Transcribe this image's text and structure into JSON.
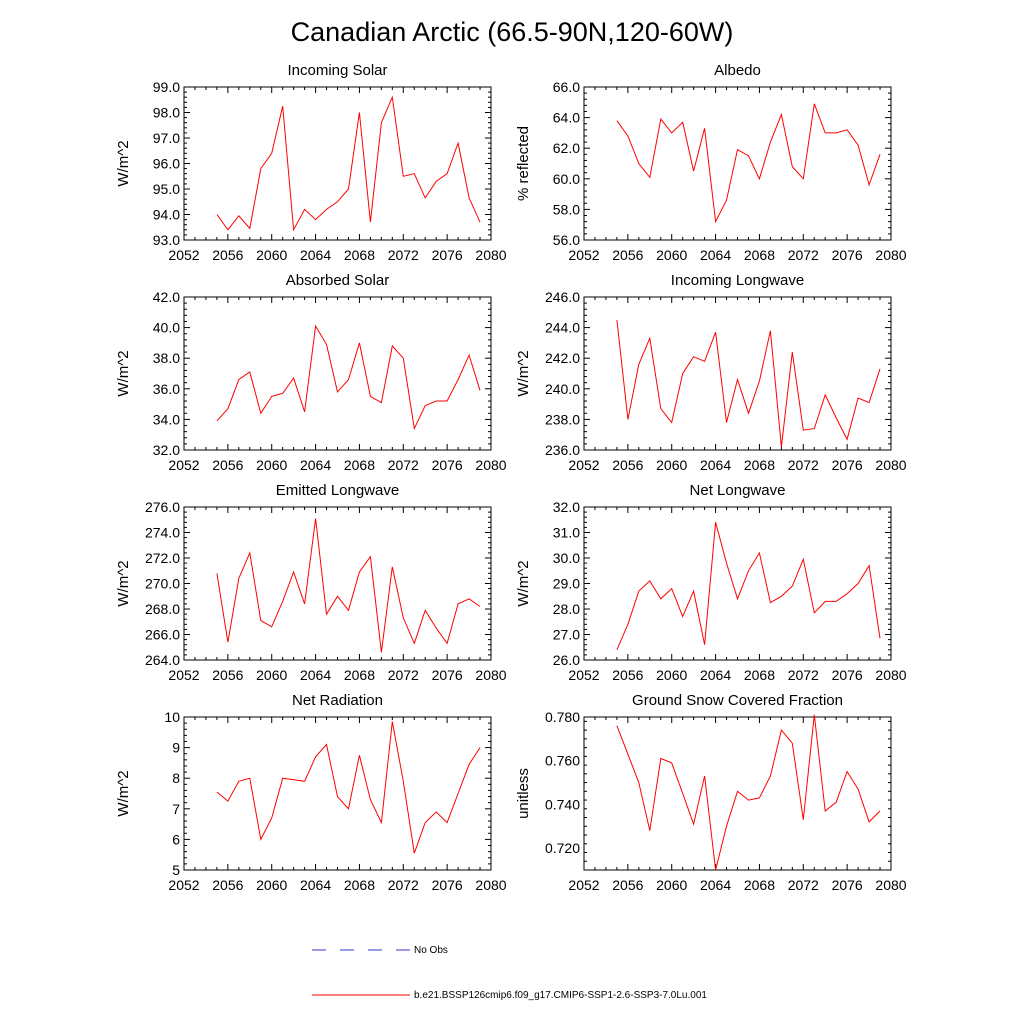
{
  "figure": {
    "title": "Canadian Arctic (66.5-90N,120-60W)",
    "colors": {
      "model": "#ff0000",
      "obs": "#3333cc",
      "frame": "#000000"
    }
  },
  "legend": {
    "obs_label": "No Obs",
    "model_label": "b.e21.BSSP126cmip6.f09_g17.CMIP6-SSP1-2.6-SSP3-7.0Lu.001"
  },
  "chart_data": [
    {
      "type": "line",
      "title": "Incoming Solar",
      "ylabel": "W/m^2",
      "xlim": [
        2052,
        2080
      ],
      "ylim": [
        93.0,
        99.0
      ],
      "xticks": [
        2052,
        2056,
        2060,
        2064,
        2068,
        2072,
        2076,
        2080
      ],
      "yticks": [
        "93.0",
        "94.0",
        "95.0",
        "96.0",
        "97.0",
        "98.0",
        "99.0"
      ],
      "series": [
        {
          "x": [
            2055,
            2056,
            2057,
            2058,
            2059,
            2060,
            2061,
            2062,
            2063,
            2064,
            2065,
            2066,
            2067,
            2068,
            2069,
            2070,
            2071,
            2072,
            2073,
            2074,
            2075,
            2076,
            2077,
            2078,
            2079
          ],
          "y": [
            94.0,
            93.4,
            93.95,
            93.45,
            95.8,
            96.4,
            98.25,
            93.4,
            94.2,
            93.8,
            94.2,
            94.5,
            95.0,
            98.0,
            93.7,
            97.6,
            98.6,
            95.5,
            95.6,
            94.65,
            95.3,
            95.6,
            96.8,
            94.65,
            93.7
          ]
        }
      ]
    },
    {
      "type": "line",
      "title": "Albedo",
      "ylabel": "% reflected",
      "xlim": [
        2052,
        2080
      ],
      "ylim": [
        56.0,
        66.0
      ],
      "xticks": [
        2052,
        2056,
        2060,
        2064,
        2068,
        2072,
        2076,
        2080
      ],
      "yticks": [
        "56.0",
        "58.0",
        "60.0",
        "62.0",
        "64.0",
        "66.0"
      ],
      "series": [
        {
          "x": [
            2055,
            2056,
            2057,
            2058,
            2059,
            2060,
            2061,
            2062,
            2063,
            2064,
            2065,
            2066,
            2067,
            2068,
            2069,
            2070,
            2071,
            2072,
            2073,
            2074,
            2075,
            2076,
            2077,
            2078,
            2079
          ],
          "y": [
            63.8,
            62.8,
            61.0,
            60.1,
            63.9,
            63.0,
            63.7,
            60.5,
            63.3,
            57.2,
            58.6,
            61.9,
            61.5,
            60.0,
            62.4,
            64.2,
            60.8,
            60.0,
            64.9,
            63.0,
            63.0,
            63.2,
            62.2,
            59.6,
            61.6
          ]
        }
      ]
    },
    {
      "type": "line",
      "title": "Absorbed Solar",
      "ylabel": "W/m^2",
      "xlim": [
        2052,
        2080
      ],
      "ylim": [
        32.0,
        42.0
      ],
      "xticks": [
        2052,
        2056,
        2060,
        2064,
        2068,
        2072,
        2076,
        2080
      ],
      "yticks": [
        "32.0",
        "34.0",
        "36.0",
        "38.0",
        "40.0",
        "42.0"
      ],
      "series": [
        {
          "x": [
            2055,
            2056,
            2057,
            2058,
            2059,
            2060,
            2061,
            2062,
            2063,
            2064,
            2065,
            2066,
            2067,
            2068,
            2069,
            2070,
            2071,
            2072,
            2073,
            2074,
            2075,
            2076,
            2077,
            2078,
            2079
          ],
          "y": [
            33.9,
            34.7,
            36.6,
            37.1,
            34.4,
            35.5,
            35.7,
            36.7,
            34.5,
            40.1,
            38.9,
            35.8,
            36.6,
            39.0,
            35.5,
            35.1,
            38.8,
            38.0,
            33.4,
            34.9,
            35.2,
            35.2,
            36.6,
            38.2,
            35.9
          ]
        }
      ]
    },
    {
      "type": "line",
      "title": "Incoming Longwave",
      "ylabel": "W/m^2",
      "xlim": [
        2052,
        2080
      ],
      "ylim": [
        236.0,
        246.0
      ],
      "xticks": [
        2052,
        2056,
        2060,
        2064,
        2068,
        2072,
        2076,
        2080
      ],
      "yticks": [
        "236.0",
        "238.0",
        "240.0",
        "242.0",
        "244.0",
        "246.0"
      ],
      "series": [
        {
          "x": [
            2055,
            2056,
            2057,
            2058,
            2059,
            2060,
            2061,
            2062,
            2063,
            2064,
            2065,
            2066,
            2067,
            2068,
            2069,
            2070,
            2071,
            2072,
            2073,
            2074,
            2075,
            2076,
            2077,
            2078,
            2079
          ],
          "y": [
            244.5,
            238.0,
            241.6,
            243.3,
            238.7,
            237.8,
            241.0,
            242.1,
            241.8,
            243.7,
            237.8,
            240.6,
            238.4,
            240.5,
            243.8,
            236.2,
            242.4,
            237.3,
            237.4,
            239.6,
            238.1,
            236.7,
            239.4,
            239.1,
            241.3
          ]
        }
      ]
    },
    {
      "type": "line",
      "title": "Emitted Longwave",
      "ylabel": "W/m^2",
      "xlim": [
        2052,
        2080
      ],
      "ylim": [
        264.0,
        276.0
      ],
      "xticks": [
        2052,
        2056,
        2060,
        2064,
        2068,
        2072,
        2076,
        2080
      ],
      "yticks": [
        "264.0",
        "266.0",
        "268.0",
        "270.0",
        "272.0",
        "274.0",
        "276.0"
      ],
      "series": [
        {
          "x": [
            2055,
            2056,
            2057,
            2058,
            2059,
            2060,
            2061,
            2062,
            2063,
            2064,
            2065,
            2066,
            2067,
            2068,
            2069,
            2070,
            2071,
            2072,
            2073,
            2074,
            2075,
            2076,
            2077,
            2078,
            2079
          ],
          "y": [
            270.8,
            265.4,
            270.4,
            272.4,
            267.1,
            266.6,
            268.6,
            270.9,
            268.4,
            275.1,
            267.6,
            269.0,
            267.9,
            270.9,
            272.1,
            264.6,
            271.3,
            267.3,
            265.3,
            267.9,
            266.5,
            265.3,
            268.4,
            268.8,
            268.2
          ]
        }
      ]
    },
    {
      "type": "line",
      "title": "Net Longwave",
      "ylabel": "W/m^2",
      "xlim": [
        2052,
        2080
      ],
      "ylim": [
        26.0,
        32.0
      ],
      "xticks": [
        2052,
        2056,
        2060,
        2064,
        2068,
        2072,
        2076,
        2080
      ],
      "yticks": [
        "26.0",
        "27.0",
        "28.0",
        "29.0",
        "30.0",
        "31.0",
        "32.0"
      ],
      "series": [
        {
          "x": [
            2055,
            2056,
            2057,
            2058,
            2059,
            2060,
            2061,
            2062,
            2063,
            2064,
            2065,
            2066,
            2067,
            2068,
            2069,
            2070,
            2071,
            2072,
            2073,
            2074,
            2075,
            2076,
            2077,
            2078,
            2079
          ],
          "y": [
            26.4,
            27.4,
            28.7,
            29.1,
            28.4,
            28.8,
            27.7,
            28.7,
            26.6,
            31.4,
            29.8,
            28.4,
            29.5,
            30.2,
            28.25,
            28.5,
            28.9,
            29.95,
            27.85,
            28.3,
            28.3,
            28.6,
            29.0,
            29.7,
            26.85
          ]
        }
      ]
    },
    {
      "type": "line",
      "title": "Net Radiation",
      "ylabel": "W/m^2",
      "xlim": [
        2052,
        2080
      ],
      "ylim": [
        5,
        10
      ],
      "xticks": [
        2052,
        2056,
        2060,
        2064,
        2068,
        2072,
        2076,
        2080
      ],
      "yticks": [
        "5",
        "6",
        "7",
        "8",
        "9",
        "10"
      ],
      "series": [
        {
          "x": [
            2055,
            2056,
            2057,
            2058,
            2059,
            2060,
            2061,
            2062,
            2063,
            2064,
            2065,
            2066,
            2067,
            2068,
            2069,
            2070,
            2071,
            2072,
            2073,
            2074,
            2075,
            2076,
            2077,
            2078,
            2079
          ],
          "y": [
            7.55,
            7.25,
            7.9,
            8.0,
            6.0,
            6.7,
            8.0,
            7.95,
            7.9,
            8.7,
            9.1,
            7.4,
            7.0,
            8.75,
            7.3,
            6.55,
            9.85,
            7.9,
            5.55,
            6.55,
            6.9,
            6.55,
            7.5,
            8.45,
            9.0
          ]
        }
      ]
    },
    {
      "type": "line",
      "title": "Ground Snow Covered Fraction",
      "ylabel": "unitless",
      "xlim": [
        2052,
        2080
      ],
      "ylim": [
        0.71,
        0.78
      ],
      "xticks": [
        2052,
        2056,
        2060,
        2064,
        2068,
        2072,
        2076,
        2080
      ],
      "yticks": [
        "0.720",
        "0.740",
        "0.760",
        "0.780"
      ],
      "series": [
        {
          "x": [
            2055,
            2056,
            2057,
            2058,
            2059,
            2060,
            2061,
            2062,
            2063,
            2064,
            2065,
            2066,
            2067,
            2068,
            2069,
            2070,
            2071,
            2072,
            2073,
            2074,
            2075,
            2076,
            2077,
            2078,
            2079
          ],
          "y": [
            0.776,
            0.763,
            0.75,
            0.728,
            0.761,
            0.759,
            0.745,
            0.731,
            0.753,
            0.71,
            0.73,
            0.746,
            0.742,
            0.743,
            0.753,
            0.774,
            0.768,
            0.733,
            0.781,
            0.737,
            0.741,
            0.755,
            0.747,
            0.732,
            0.737
          ]
        }
      ]
    }
  ]
}
